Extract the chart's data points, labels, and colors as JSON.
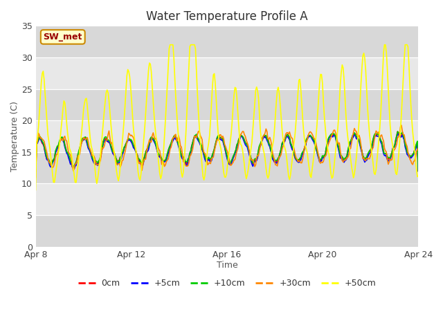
{
  "title": "Water Temperature Profile A",
  "xlabel": "Time",
  "ylabel": "Temperature (C)",
  "ylim": [
    0,
    35
  ],
  "yticks": [
    0,
    5,
    10,
    15,
    20,
    25,
    30,
    35
  ],
  "x_tick_labels": [
    "Apr 8",
    "Apr 12",
    "Apr 16",
    "Apr 20",
    "Apr 24"
  ],
  "x_tick_positions": [
    0,
    4,
    8,
    12,
    16
  ],
  "series_colors": [
    "#ff0000",
    "#0000ff",
    "#00cc00",
    "#ff8800",
    "#ffff00"
  ],
  "series_labels": [
    "0cm",
    "+5cm",
    "+10cm",
    "+30cm",
    "+50cm"
  ],
  "label_box_text": "SW_met",
  "label_box_facecolor": "#ffffcc",
  "label_box_edgecolor": "#cc8800",
  "label_box_textcolor": "#990000",
  "background_color": "#ffffff",
  "plot_bg_light": "#e8e8e8",
  "plot_bg_dark": "#d8d8d8",
  "title_fontsize": 12,
  "axis_label_fontsize": 9,
  "tick_fontsize": 9,
  "legend_fontsize": 9
}
